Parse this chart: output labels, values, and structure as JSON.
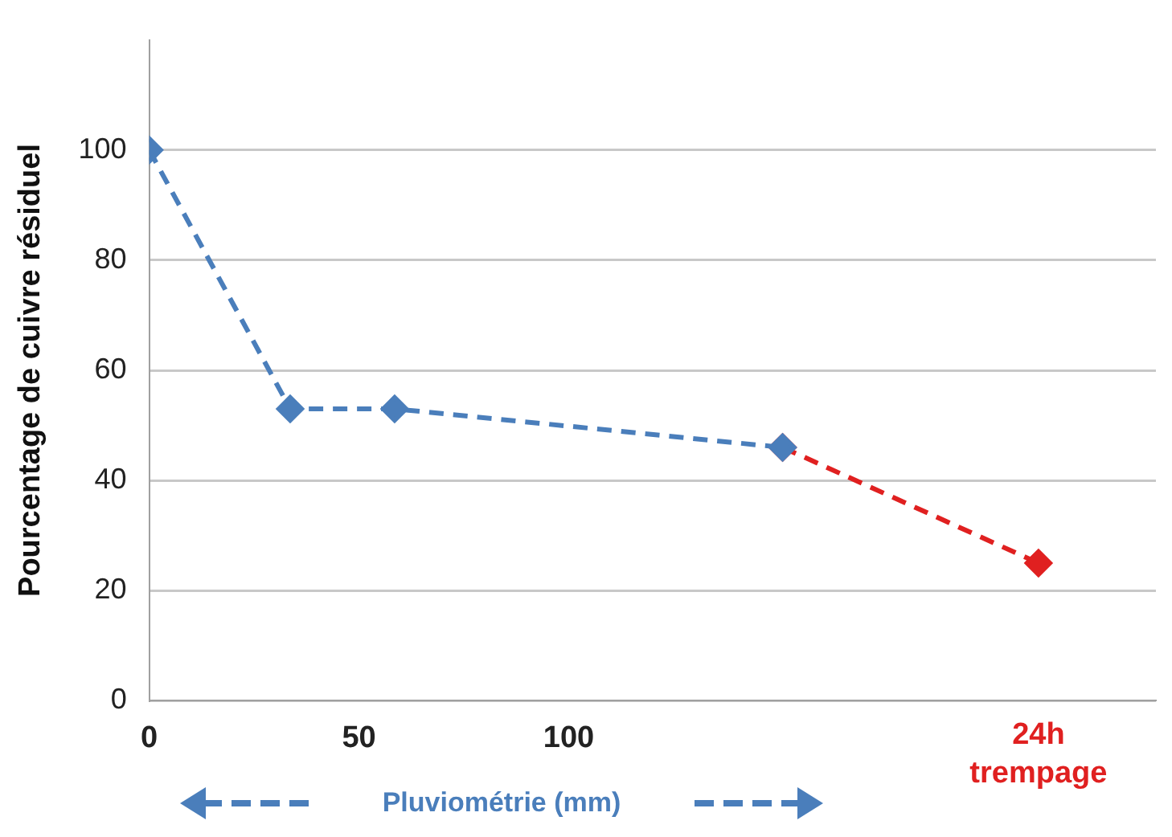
{
  "chart_data": {
    "type": "line",
    "xlabel": "Pluviométrie (mm)",
    "ylabel": "Pourcentage de cuivre résiduel",
    "series": [
      {
        "color": "#4a7ebb",
        "x": [
          0,
          33.6,
          58.5,
          151
        ],
        "values": [
          100,
          53,
          53,
          46
        ]
      },
      {
        "color": "#e02020",
        "x": [
          151,
          212
        ],
        "values": [
          46,
          25
        ]
      }
    ],
    "xlim": [
      0,
      240
    ],
    "xticks": [
      0,
      50,
      100
    ],
    "annotations": [
      "24h trempage"
    ],
    "ylim": [
      0,
      120
    ],
    "yticks": [
      0,
      20,
      40,
      60,
      80,
      100
    ],
    "grid": "y",
    "marker": "diamond",
    "line_style": "dashed",
    "legend": false
  }
}
